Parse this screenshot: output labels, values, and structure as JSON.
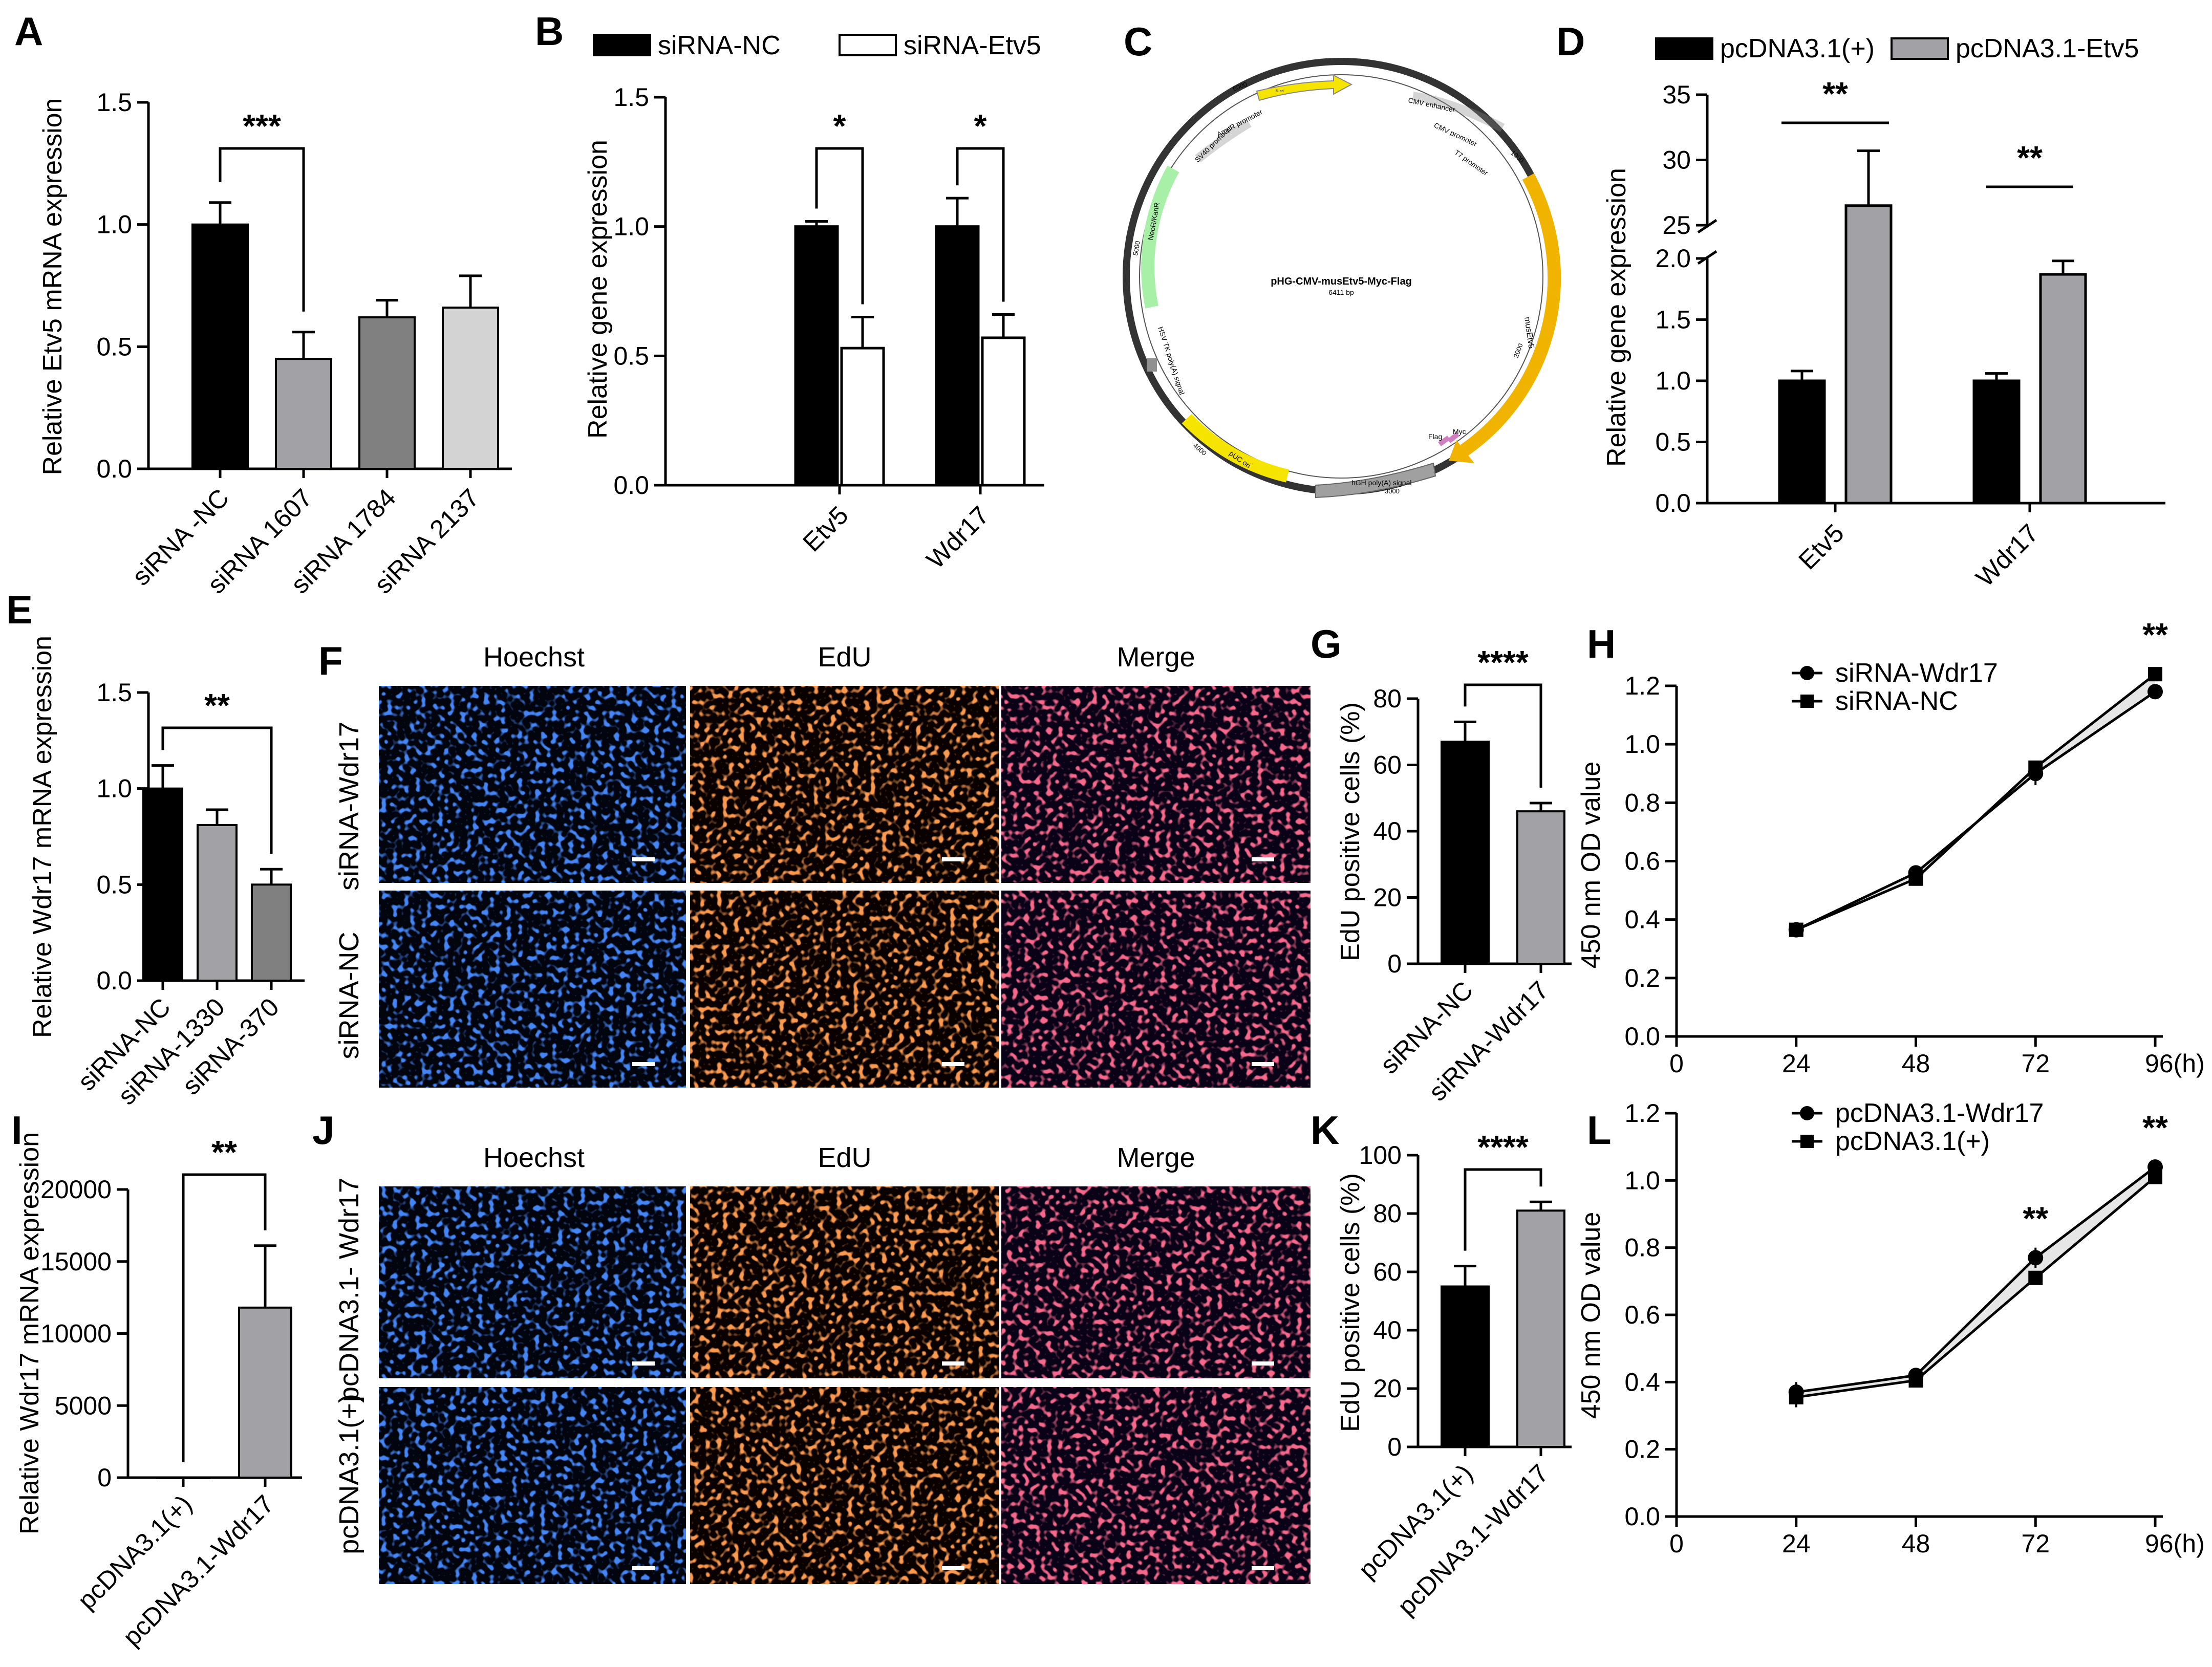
{
  "panel_labels": {
    "A": "A",
    "B": "B",
    "C": "C",
    "D": "D",
    "E": "E",
    "F": "F",
    "G": "G",
    "H": "H",
    "I": "I",
    "J": "J",
    "K": "K",
    "L": "L"
  },
  "colors": {
    "black": "#000000",
    "gray": "#a2a2a6",
    "darkgray": "#808080",
    "lightgray": "#d3d3d3",
    "white": "#ffffff",
    "blue": "#1c4fd6",
    "red": "#e8401c",
    "merge": "#7a2a8a",
    "yellow": "#f5e400",
    "amber": "#f0b400",
    "green": "#a8f0a8",
    "plasgray": "#a0a0a0"
  },
  "micro": {
    "F": {
      "headers": [
        "Hoechst",
        "EdU",
        "Merge"
      ],
      "rows": [
        "siRNA-Wdr17",
        "siRNA-NC"
      ]
    },
    "J": {
      "headers": [
        "Hoechst",
        "EdU",
        "Merge"
      ],
      "rows": [
        "pcDNA3.1- Wdr17",
        "pcDNA3.1(+)"
      ]
    }
  },
  "plasmid": {
    "title": "pHG-CMV-musEtv5-Myc-Flag",
    "size": "6411 bp",
    "features": {
      "f1ori": "f1 ori",
      "cmvenh": "CMV enhancer",
      "cmvprom": "CMV promoter",
      "t7": "T7 promoter",
      "ampr": "AmpR promoter",
      "sv40": "SV40 promoter",
      "neo": "NeoR/KanR",
      "musetv5": "musEtv5",
      "hsv": "HSV TK poly(A) signal",
      "puc": "pUC ori",
      "hgh": "hGH poly(A) signal",
      "flag": "Flag",
      "myc": "Myc"
    },
    "ticks": {
      "t1000": "1000",
      "t2000": "2000",
      "t3000": "3000",
      "t4000": "4000",
      "t5000": "5000",
      "t6000": "6000"
    }
  },
  "chart_data": [
    {
      "id": "A",
      "type": "bar",
      "categories": [
        "siRNA -NC",
        "siRNA 1607",
        "siRNA 1784",
        "siRNA 2137"
      ],
      "values": [
        1.0,
        0.45,
        0.62,
        0.66
      ],
      "errors": [
        0.09,
        0.11,
        0.07,
        0.13
      ],
      "colors": [
        "#000000",
        "#a2a2a6",
        "#808080",
        "#d3d3d3"
      ],
      "ylabel": "Relative Etv5 mRNA expression",
      "ylim": [
        0,
        1.5
      ],
      "yticks": [
        "0.0",
        "0.5",
        "1.0",
        "1.5"
      ],
      "annotation": "***"
    },
    {
      "id": "B",
      "type": "bar",
      "categories": [
        "Etv5",
        "Wdr17"
      ],
      "series": [
        {
          "name": "siRNA-NC",
          "values": [
            1.0,
            1.0
          ],
          "errors": [
            0.02,
            0.11
          ]
        },
        {
          "name": "siRNA-Etv5",
          "values": [
            0.53,
            0.57
          ],
          "errors": [
            0.12,
            0.09
          ]
        }
      ],
      "ylabel": "Relative gene expression",
      "ylim": [
        0,
        1.5
      ],
      "yticks": [
        "0.0",
        "0.5",
        "1.0",
        "1.5"
      ],
      "annotations": [
        "*",
        "*"
      ]
    },
    {
      "id": "D",
      "type": "bar",
      "categories": [
        "Etv5",
        "Wdr17"
      ],
      "series": [
        {
          "name": "pcDNA3.1(+)",
          "values": [
            1.0,
            1.0
          ],
          "errors": [
            0.08,
            0.06
          ]
        },
        {
          "name": "pcDNA3.1-Etv5",
          "values": [
            26.5,
            1.87
          ],
          "errors": [
            4.2,
            0.11
          ]
        }
      ],
      "ylabel": "Relative gene expression",
      "ylim": [
        0,
        35
      ],
      "axis_break": [
        2.0,
        25
      ],
      "yticks": [
        "0.0",
        "0.5",
        "1.0",
        "1.5",
        "2.0",
        "25",
        "30",
        "35"
      ],
      "annotations": [
        "**",
        "**"
      ]
    },
    {
      "id": "E",
      "type": "bar",
      "categories": [
        "siRNA-NC",
        "siRNA-1330",
        "siRNA-370"
      ],
      "values": [
        1.0,
        0.81,
        0.5
      ],
      "errors": [
        0.12,
        0.08,
        0.08
      ],
      "colors": [
        "#000000",
        "#a2a2a6",
        "#808080"
      ],
      "ylabel": "Relative Wdr17 mRNA expression",
      "ylim": [
        0,
        1.5
      ],
      "yticks": [
        "0.0",
        "0.5",
        "1.0",
        "1.5"
      ],
      "annotation": "**"
    },
    {
      "id": "G",
      "type": "bar",
      "categories": [
        "siRNA-NC",
        "siRNA-Wdr17"
      ],
      "values": [
        67,
        46
      ],
      "errors": [
        6,
        2.5
      ],
      "colors": [
        "#000000",
        "#a2a2a6"
      ],
      "ylabel": "EdU positive cells (%)",
      "ylim": [
        0,
        80
      ],
      "yticks": [
        "0",
        "20",
        "40",
        "60",
        "80"
      ],
      "annotation": "****"
    },
    {
      "id": "H",
      "type": "line",
      "x": [
        24,
        48,
        72,
        96
      ],
      "xticks": [
        "0",
        "24",
        "48",
        "72",
        "96(h)"
      ],
      "series": [
        {
          "name": "siRNA-Wdr17",
          "marker": "circle",
          "values": [
            0.365,
            0.56,
            0.9,
            1.18
          ],
          "errors": [
            0.005,
            0.01,
            0.04,
            0.01
          ]
        },
        {
          "name": "siRNA-NC",
          "marker": "square",
          "values": [
            0.365,
            0.54,
            0.92,
            1.24
          ],
          "errors": [
            0.005,
            0.01,
            0.02,
            0.01
          ]
        }
      ],
      "ylabel": "450 nm OD value",
      "ylim": [
        0,
        1.2
      ],
      "yticks": [
        "0.0",
        "0.2",
        "0.4",
        "0.6",
        "0.8",
        "1.0",
        "1.2"
      ],
      "annotations": [
        {
          "x": 96,
          "text": "**"
        }
      ]
    },
    {
      "id": "I",
      "type": "bar",
      "categories": [
        "pcDNA3.1(+)",
        "pcDNA3.1-Wdr17"
      ],
      "values": [
        1,
        11800
      ],
      "errors": [
        0,
        4300
      ],
      "colors": [
        "#000000",
        "#a2a2a6"
      ],
      "ylabel": "Relative Wdr17 mRNA expression",
      "ylim": [
        0,
        20000
      ],
      "yticks": [
        "0",
        "5000",
        "10000",
        "15000",
        "20000"
      ],
      "annotation": "**"
    },
    {
      "id": "K",
      "type": "bar",
      "categories": [
        "pcDNA3.1(+)",
        "pcDNA3.1-Wdr17"
      ],
      "values": [
        55,
        81
      ],
      "errors": [
        7,
        3
      ],
      "colors": [
        "#000000",
        "#a2a2a6"
      ],
      "ylabel": "EdU positive cells (%)",
      "ylim": [
        0,
        100
      ],
      "yticks": [
        "0",
        "20",
        "40",
        "60",
        "80",
        "100"
      ],
      "annotation": "****"
    },
    {
      "id": "L",
      "type": "line",
      "x": [
        24,
        48,
        72,
        96
      ],
      "xticks": [
        "0",
        "24",
        "48",
        "72",
        "96(h)"
      ],
      "series": [
        {
          "name": "pcDNA3.1-Wdr17",
          "marker": "circle",
          "values": [
            0.37,
            0.42,
            0.77,
            1.04
          ],
          "errors": [
            0.03,
            0.01,
            0.03,
            0.01
          ]
        },
        {
          "name": "pcDNA3.1(+)",
          "marker": "square",
          "values": [
            0.355,
            0.405,
            0.71,
            1.01
          ],
          "errors": [
            0.03,
            0.01,
            0.01,
            0.01
          ]
        }
      ],
      "ylabel": "450 nm OD value",
      "ylim": [
        0,
        1.2
      ],
      "yticks": [
        "0.0",
        "0.2",
        "0.4",
        "0.6",
        "0.8",
        "1.0",
        "1.2"
      ],
      "annotations": [
        {
          "x": 72,
          "text": "**"
        },
        {
          "x": 96,
          "text": "**"
        }
      ]
    }
  ]
}
